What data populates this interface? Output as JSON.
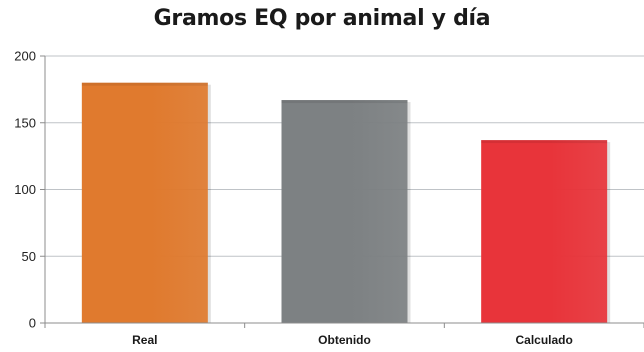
{
  "chart_data": {
    "type": "bar",
    "title": "Gramos EQ por animal y día",
    "categories": [
      "Real",
      "Obtenido",
      "Calculado"
    ],
    "values": [
      180,
      167,
      137
    ],
    "colors": [
      "#e07a2e",
      "#7d8183",
      "#e8343a"
    ],
    "ylim": [
      0,
      200
    ],
    "yticks": [
      "0",
      "50",
      "100",
      "150",
      "200"
    ],
    "xlabel": "",
    "ylabel": "",
    "grid": true,
    "legend": "none"
  }
}
